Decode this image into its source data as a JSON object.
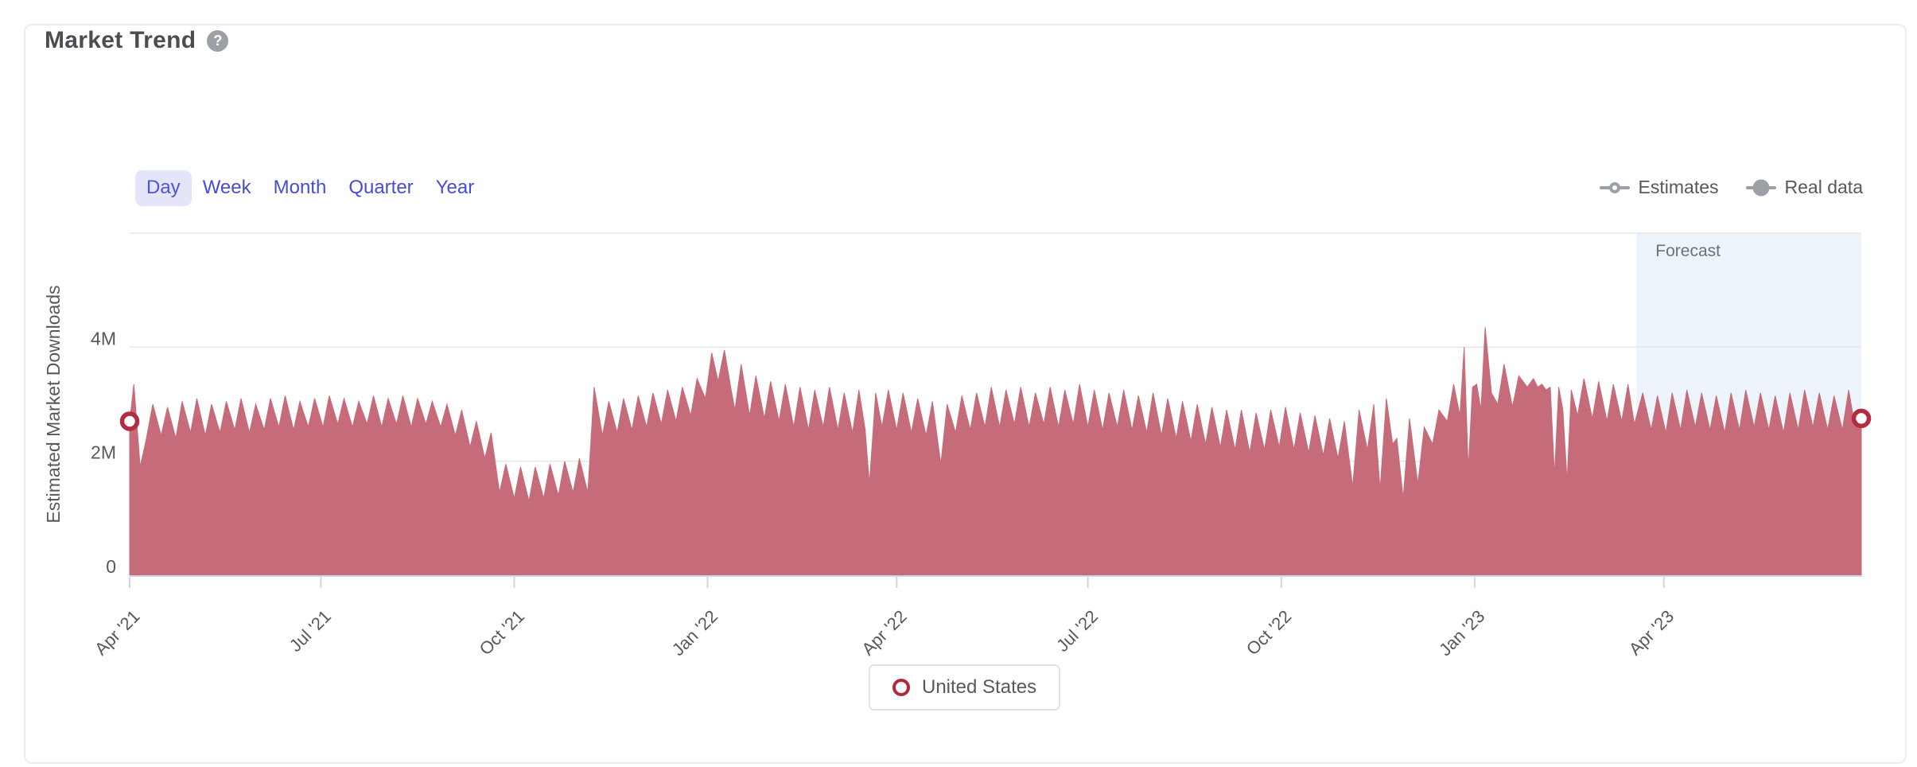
{
  "header": {
    "title": "Market Trend",
    "help_icon": "?"
  },
  "toolbar": {
    "tabs": [
      {
        "label": "Day",
        "selected": true
      },
      {
        "label": "Week",
        "selected": false
      },
      {
        "label": "Month",
        "selected": false
      },
      {
        "label": "Quarter",
        "selected": false
      },
      {
        "label": "Year",
        "selected": false
      }
    ]
  },
  "legend_top": {
    "items": [
      {
        "label": "Estimates",
        "marker": "open-circle"
      },
      {
        "label": "Real data",
        "marker": "filled-circle"
      }
    ]
  },
  "series_legend": {
    "items": [
      {
        "label": "United States",
        "marker": "open-circle",
        "color": "#b2293a"
      }
    ]
  },
  "colors": {
    "area_fill": "#c66b79",
    "marker_ring": "#b12d3f",
    "forecast_band": "#eef4fc",
    "gridline": "#e7e7e7",
    "axis_line": "#ccd6eb",
    "tick_text": "#55595e",
    "forecast_label": "#6d7277",
    "legend_gray": "#9aa0a6",
    "accent_indigo": "#5053d8"
  },
  "chart_data": {
    "type": "area",
    "title": "",
    "xlabel": "",
    "ylabel": "Estimated Market Downloads",
    "unit": "millions",
    "ylim": [
      0,
      6
    ],
    "xlim_days": [
      0,
      824
    ],
    "x_start_label": "Apr '21",
    "grid": "on",
    "gridline_values": [
      2,
      4,
      6
    ],
    "y_ticks": [
      {
        "value": 0,
        "label": "0"
      },
      {
        "value": 2,
        "label": "2M"
      },
      {
        "value": 4,
        "label": "4M"
      }
    ],
    "x_ticks": [
      {
        "day": 0,
        "label": "Apr '21"
      },
      {
        "day": 91,
        "label": "Jul '21"
      },
      {
        "day": 183,
        "label": "Oct '21"
      },
      {
        "day": 275,
        "label": "Jan '22"
      },
      {
        "day": 365,
        "label": "Apr '22"
      },
      {
        "day": 456,
        "label": "Jul '22"
      },
      {
        "day": 548,
        "label": "Oct '22"
      },
      {
        "day": 640,
        "label": "Jan '23"
      },
      {
        "day": 730,
        "label": "Apr '23"
      }
    ],
    "forecast_band": {
      "from_day": 717,
      "to_day": 824,
      "label": "Forecast"
    },
    "endpoint_markers": [
      {
        "day": 0,
        "value": 2.7
      },
      {
        "day": 824,
        "value": 2.75
      }
    ],
    "series": [
      {
        "name": "United States",
        "points": [
          [
            0,
            2.7
          ],
          [
            2,
            3.35
          ],
          [
            5,
            1.9
          ],
          [
            8,
            2.4
          ],
          [
            11,
            3.0
          ],
          [
            15,
            2.45
          ],
          [
            18,
            2.95
          ],
          [
            22,
            2.4
          ],
          [
            25,
            3.05
          ],
          [
            29,
            2.5
          ],
          [
            32,
            3.1
          ],
          [
            36,
            2.45
          ],
          [
            39,
            3.0
          ],
          [
            43,
            2.5
          ],
          [
            46,
            3.05
          ],
          [
            50,
            2.55
          ],
          [
            53,
            3.1
          ],
          [
            57,
            2.5
          ],
          [
            60,
            3.0
          ],
          [
            64,
            2.55
          ],
          [
            67,
            3.1
          ],
          [
            71,
            2.6
          ],
          [
            74,
            3.15
          ],
          [
            78,
            2.55
          ],
          [
            81,
            3.05
          ],
          [
            85,
            2.6
          ],
          [
            88,
            3.1
          ],
          [
            92,
            2.6
          ],
          [
            95,
            3.15
          ],
          [
            99,
            2.65
          ],
          [
            102,
            3.1
          ],
          [
            106,
            2.6
          ],
          [
            109,
            3.05
          ],
          [
            113,
            2.65
          ],
          [
            116,
            3.15
          ],
          [
            120,
            2.6
          ],
          [
            123,
            3.1
          ],
          [
            127,
            2.65
          ],
          [
            130,
            3.15
          ],
          [
            134,
            2.6
          ],
          [
            137,
            3.1
          ],
          [
            141,
            2.65
          ],
          [
            144,
            3.05
          ],
          [
            148,
            2.6
          ],
          [
            151,
            3.0
          ],
          [
            155,
            2.45
          ],
          [
            158,
            2.9
          ],
          [
            162,
            2.25
          ],
          [
            165,
            2.7
          ],
          [
            169,
            2.05
          ],
          [
            172,
            2.5
          ],
          [
            176,
            1.45
          ],
          [
            179,
            1.95
          ],
          [
            183,
            1.35
          ],
          [
            186,
            1.9
          ],
          [
            190,
            1.3
          ],
          [
            193,
            1.9
          ],
          [
            197,
            1.35
          ],
          [
            200,
            1.95
          ],
          [
            204,
            1.4
          ],
          [
            207,
            2.0
          ],
          [
            211,
            1.45
          ],
          [
            214,
            2.05
          ],
          [
            218,
            1.45
          ],
          [
            221,
            3.3
          ],
          [
            225,
            2.45
          ],
          [
            228,
            3.05
          ],
          [
            232,
            2.5
          ],
          [
            235,
            3.1
          ],
          [
            239,
            2.55
          ],
          [
            242,
            3.15
          ],
          [
            246,
            2.6
          ],
          [
            249,
            3.2
          ],
          [
            253,
            2.65
          ],
          [
            256,
            3.25
          ],
          [
            260,
            2.7
          ],
          [
            263,
            3.3
          ],
          [
            267,
            2.8
          ],
          [
            270,
            3.45
          ],
          [
            274,
            3.1
          ],
          [
            277,
            3.9
          ],
          [
            280,
            3.4
          ],
          [
            283,
            3.95
          ],
          [
            286,
            3.3
          ],
          [
            288,
            2.9
          ],
          [
            291,
            3.7
          ],
          [
            295,
            2.8
          ],
          [
            298,
            3.5
          ],
          [
            302,
            2.75
          ],
          [
            305,
            3.4
          ],
          [
            309,
            2.7
          ],
          [
            312,
            3.35
          ],
          [
            316,
            2.6
          ],
          [
            319,
            3.3
          ],
          [
            323,
            2.55
          ],
          [
            326,
            3.25
          ],
          [
            330,
            2.6
          ],
          [
            333,
            3.3
          ],
          [
            337,
            2.55
          ],
          [
            340,
            3.2
          ],
          [
            344,
            2.5
          ],
          [
            347,
            3.25
          ],
          [
            350,
            2.55
          ],
          [
            352,
            1.6
          ],
          [
            355,
            3.2
          ],
          [
            358,
            2.6
          ],
          [
            361,
            3.25
          ],
          [
            365,
            2.55
          ],
          [
            368,
            3.2
          ],
          [
            372,
            2.5
          ],
          [
            375,
            3.1
          ],
          [
            379,
            2.45
          ],
          [
            382,
            3.05
          ],
          [
            386,
            1.95
          ],
          [
            389,
            3.0
          ],
          [
            393,
            2.5
          ],
          [
            396,
            3.15
          ],
          [
            400,
            2.55
          ],
          [
            403,
            3.2
          ],
          [
            407,
            2.6
          ],
          [
            410,
            3.3
          ],
          [
            414,
            2.6
          ],
          [
            417,
            3.25
          ],
          [
            421,
            2.65
          ],
          [
            424,
            3.3
          ],
          [
            428,
            2.6
          ],
          [
            431,
            3.2
          ],
          [
            435,
            2.65
          ],
          [
            438,
            3.3
          ],
          [
            442,
            2.6
          ],
          [
            445,
            3.25
          ],
          [
            449,
            2.65
          ],
          [
            452,
            3.35
          ],
          [
            456,
            2.6
          ],
          [
            459,
            3.25
          ],
          [
            463,
            2.55
          ],
          [
            466,
            3.2
          ],
          [
            470,
            2.6
          ],
          [
            473,
            3.25
          ],
          [
            477,
            2.55
          ],
          [
            480,
            3.15
          ],
          [
            484,
            2.5
          ],
          [
            487,
            3.2
          ],
          [
            491,
            2.45
          ],
          [
            494,
            3.1
          ],
          [
            498,
            2.4
          ],
          [
            501,
            3.05
          ],
          [
            505,
            2.35
          ],
          [
            508,
            3.0
          ],
          [
            512,
            2.3
          ],
          [
            515,
            2.95
          ],
          [
            519,
            2.25
          ],
          [
            522,
            2.9
          ],
          [
            526,
            2.2
          ],
          [
            529,
            2.9
          ],
          [
            533,
            2.15
          ],
          [
            536,
            2.85
          ],
          [
            540,
            2.2
          ],
          [
            543,
            2.9
          ],
          [
            547,
            2.25
          ],
          [
            550,
            2.95
          ],
          [
            554,
            2.2
          ],
          [
            557,
            2.85
          ],
          [
            561,
            2.15
          ],
          [
            564,
            2.8
          ],
          [
            568,
            2.1
          ],
          [
            571,
            2.75
          ],
          [
            575,
            2.05
          ],
          [
            578,
            2.7
          ],
          [
            582,
            1.55
          ],
          [
            585,
            2.9
          ],
          [
            589,
            2.2
          ],
          [
            592,
            3.0
          ],
          [
            595,
            1.5
          ],
          [
            598,
            3.1
          ],
          [
            601,
            2.3
          ],
          [
            603,
            2.4
          ],
          [
            606,
            1.35
          ],
          [
            609,
            2.75
          ],
          [
            613,
            1.6
          ],
          [
            616,
            2.6
          ],
          [
            620,
            2.3
          ],
          [
            623,
            2.9
          ],
          [
            627,
            2.7
          ],
          [
            630,
            3.35
          ],
          [
            633,
            2.8
          ],
          [
            635,
            4.0
          ],
          [
            637,
            1.85
          ],
          [
            639,
            3.3
          ],
          [
            641,
            3.35
          ],
          [
            643,
            2.9
          ],
          [
            645,
            4.35
          ],
          [
            648,
            3.2
          ],
          [
            651,
            3.0
          ],
          [
            654,
            3.7
          ],
          [
            658,
            2.95
          ],
          [
            661,
            3.5
          ],
          [
            665,
            3.3
          ],
          [
            668,
            3.45
          ],
          [
            670,
            3.3
          ],
          [
            672,
            3.35
          ],
          [
            674,
            3.25
          ],
          [
            676,
            3.3
          ],
          [
            678,
            1.75
          ],
          [
            680,
            3.3
          ],
          [
            682,
            2.9
          ],
          [
            684,
            1.65
          ],
          [
            686,
            3.25
          ],
          [
            689,
            2.8
          ],
          [
            692,
            3.45
          ],
          [
            696,
            2.75
          ],
          [
            699,
            3.4
          ],
          [
            703,
            2.7
          ],
          [
            706,
            3.35
          ],
          [
            710,
            2.7
          ],
          [
            713,
            3.35
          ],
          [
            716,
            2.65
          ],
          [
            720,
            3.2
          ],
          [
            724,
            2.55
          ],
          [
            727,
            3.15
          ],
          [
            731,
            2.5
          ],
          [
            734,
            3.2
          ],
          [
            738,
            2.55
          ],
          [
            741,
            3.25
          ],
          [
            745,
            2.6
          ],
          [
            748,
            3.2
          ],
          [
            752,
            2.55
          ],
          [
            755,
            3.15
          ],
          [
            759,
            2.5
          ],
          [
            762,
            3.2
          ],
          [
            766,
            2.55
          ],
          [
            769,
            3.25
          ],
          [
            773,
            2.6
          ],
          [
            776,
            3.2
          ],
          [
            780,
            2.55
          ],
          [
            783,
            3.15
          ],
          [
            787,
            2.5
          ],
          [
            790,
            3.2
          ],
          [
            794,
            2.55
          ],
          [
            797,
            3.25
          ],
          [
            801,
            2.6
          ],
          [
            804,
            3.2
          ],
          [
            808,
            2.55
          ],
          [
            811,
            3.15
          ],
          [
            815,
            2.55
          ],
          [
            818,
            3.25
          ],
          [
            821,
            2.6
          ],
          [
            824,
            2.75
          ]
        ]
      }
    ]
  }
}
